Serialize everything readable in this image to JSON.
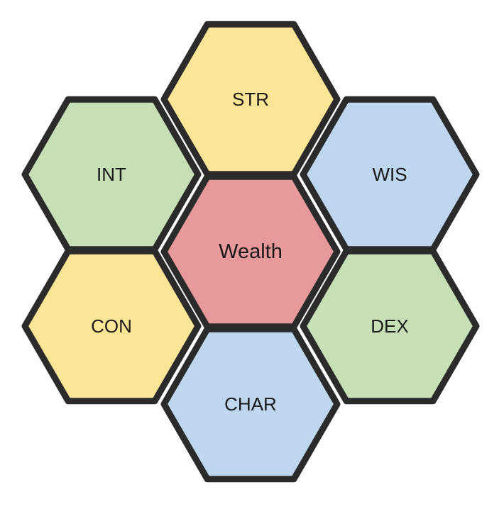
{
  "diagram": {
    "cells": [
      {
        "id": "str",
        "label": "STR",
        "fill": "#fde597"
      },
      {
        "id": "int",
        "label": "INT",
        "fill": "#c6dfb4"
      },
      {
        "id": "wis",
        "label": "WIS",
        "fill": "#bed6ee"
      },
      {
        "id": "wealth",
        "label": "Wealth",
        "fill": "#e8999c"
      },
      {
        "id": "con",
        "label": "CON",
        "fill": "#fde597"
      },
      {
        "id": "dex",
        "label": "DEX",
        "fill": "#c6dfb4"
      },
      {
        "id": "char",
        "label": "CHAR",
        "fill": "#bed6ee"
      }
    ],
    "border_color": "#2b2b2b"
  }
}
